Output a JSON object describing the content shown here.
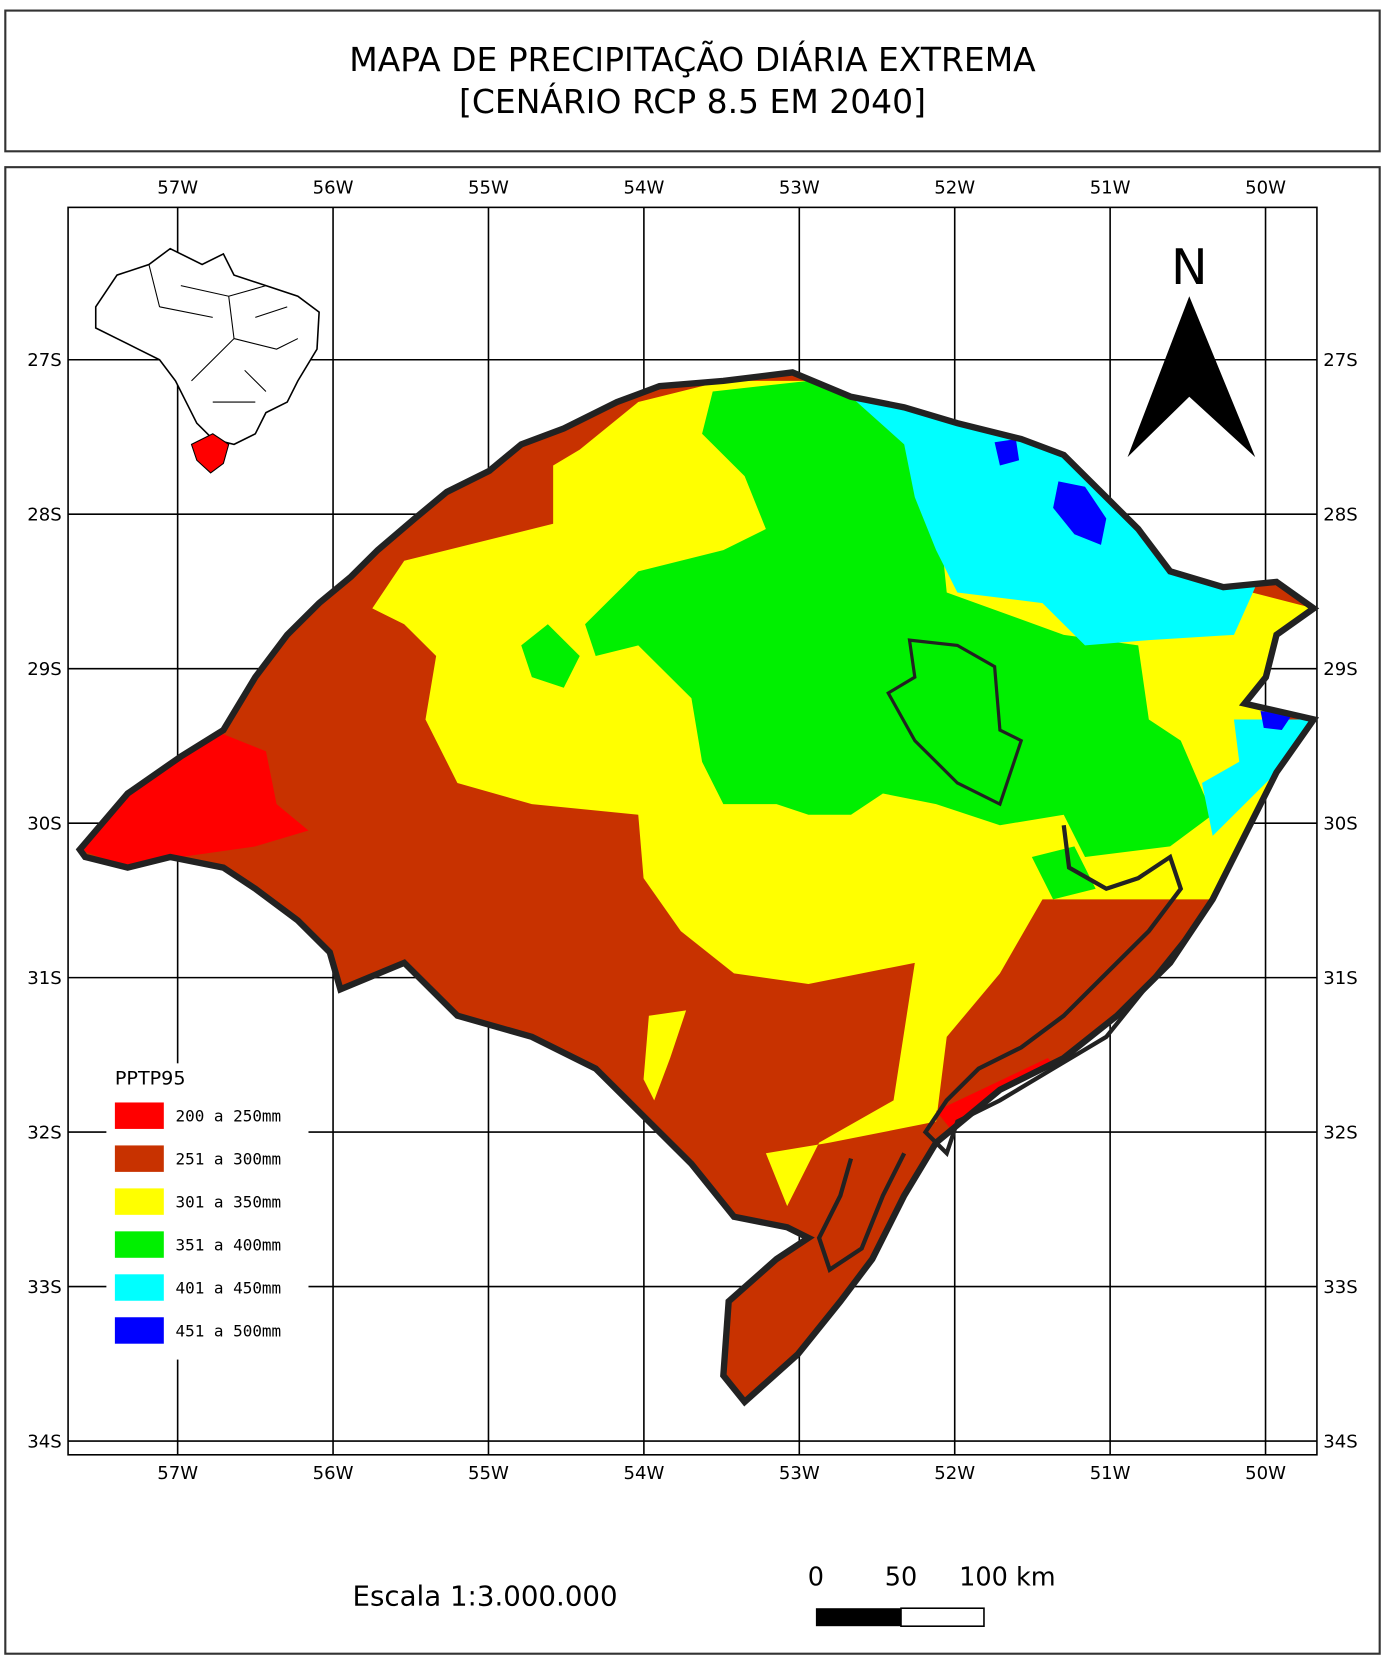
{
  "header": {
    "title": [
      "MAPA DE PRECIPITAÇÃO DIÁRIA EXTREMA",
      "[CENÁRIO RCP 8.5 EM 2040]"
    ]
  },
  "map": {
    "longitude_labels": [
      "57W",
      "56W",
      "55W",
      "54W",
      "53W",
      "52W",
      "51W",
      "50W"
    ],
    "latitude_labels": [
      "27S",
      "28S",
      "29S",
      "30S",
      "31S",
      "32S",
      "33S",
      "34S"
    ],
    "north_label": "N",
    "legend": {
      "title": "PPTP95",
      "items": [
        {
          "label": "200 a 250mm",
          "color": "#ff0000"
        },
        {
          "label": "251 a 300mm",
          "color": "#c83200"
        },
        {
          "label": "301 a 350mm",
          "color": "#ffff00"
        },
        {
          "label": "351 a 400mm",
          "color": "#00f000"
        },
        {
          "label": "401 a 450mm",
          "color": "#00ffff"
        },
        {
          "label": "451 a 500mm",
          "color": "#0000ff"
        }
      ]
    },
    "scale": {
      "text": "Escala 1:3.000.000",
      "labels": [
        "0",
        "50",
        "100 km"
      ]
    }
  }
}
